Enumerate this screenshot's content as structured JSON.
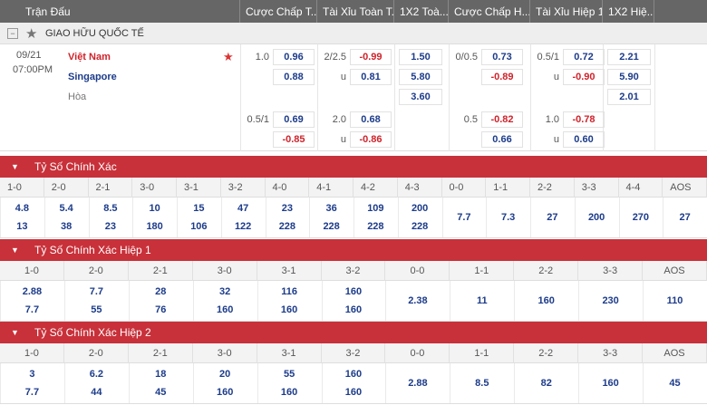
{
  "header": {
    "columns": [
      "Trận Đấu",
      "Cược Chấp T...",
      "Tài Xỉu Toàn T...",
      "1X2 Toà...",
      "Cược Chấp H...",
      "Tài Xỉu Hiệp 1",
      "1X2 Hiệ..."
    ]
  },
  "league": "GIAO HỮU QUỐC TẾ",
  "match": {
    "date": "09/21",
    "time": "07:00PM",
    "home": "Việt Nam",
    "away": "Singapore",
    "draw": "Hòa"
  },
  "odds": {
    "handicap": [
      {
        "line": "1.0",
        "home": "0.96",
        "away": "0.88"
      },
      {
        "line": "0.5/1",
        "home": "0.69",
        "away": "-0.85"
      }
    ],
    "over_under": [
      {
        "line": "2/2.5",
        "over": "-0.99",
        "under_label": "u",
        "under": "0.81"
      },
      {
        "line": "2.0",
        "over": "0.68",
        "under_label": "u",
        "under": "-0.86"
      }
    ],
    "x12": {
      "home": "1.50",
      "away": "5.80",
      "draw": "3.60"
    },
    "ht_handicap": [
      {
        "line": "0/0.5",
        "home": "0.73",
        "away": "-0.89"
      },
      {
        "line": "0.5",
        "home": "-0.82",
        "away": "0.66"
      }
    ],
    "ht_over_under": [
      {
        "line": "0.5/1",
        "over": "0.72",
        "under_label": "u",
        "under": "-0.90"
      },
      {
        "line": "1.0",
        "over": "-0.78",
        "under_label": "u",
        "under": "0.60"
      }
    ],
    "ht_x12": {
      "home": "2.21",
      "away": "5.90",
      "draw": "2.01"
    }
  },
  "sections": [
    {
      "title": "Tỷ Số Chính Xác",
      "columns": [
        "1-0",
        "2-0",
        "2-1",
        "3-0",
        "3-1",
        "3-2",
        "4-0",
        "4-1",
        "4-2",
        "4-3",
        "0-0",
        "1-1",
        "2-2",
        "3-3",
        "4-4",
        "AOS"
      ],
      "home": [
        "4.8",
        "5.4",
        "8.5",
        "10",
        "15",
        "47",
        "23",
        "36",
        "109",
        "200"
      ],
      "away": [
        "13",
        "38",
        "23",
        "180",
        "106",
        "122",
        "228",
        "228",
        "228",
        "228"
      ],
      "other": [
        "7.7",
        "7.3",
        "27",
        "200",
        "270",
        "27"
      ]
    },
    {
      "title": "Tỷ Số Chính Xác Hiệp 1",
      "columns": [
        "1-0",
        "2-0",
        "2-1",
        "3-0",
        "3-1",
        "3-2",
        "0-0",
        "1-1",
        "2-2",
        "3-3",
        "AOS"
      ],
      "home": [
        "2.88",
        "7.7",
        "28",
        "32",
        "116",
        "160"
      ],
      "away": [
        "7.7",
        "55",
        "76",
        "160",
        "160",
        "160"
      ],
      "other": [
        "2.38",
        "11",
        "160",
        "230",
        "110"
      ]
    },
    {
      "title": "Tỷ Số Chính Xác Hiệp 2",
      "columns": [
        "1-0",
        "2-0",
        "2-1",
        "3-0",
        "3-1",
        "3-2",
        "0-0",
        "1-1",
        "2-2",
        "3-3",
        "AOS"
      ],
      "home": [
        "3",
        "6.2",
        "18",
        "20",
        "55",
        "160"
      ],
      "away": [
        "7.7",
        "44",
        "45",
        "160",
        "160",
        "160"
      ],
      "other": [
        "2.88",
        "8.5",
        "82",
        "160",
        "45"
      ]
    }
  ]
}
